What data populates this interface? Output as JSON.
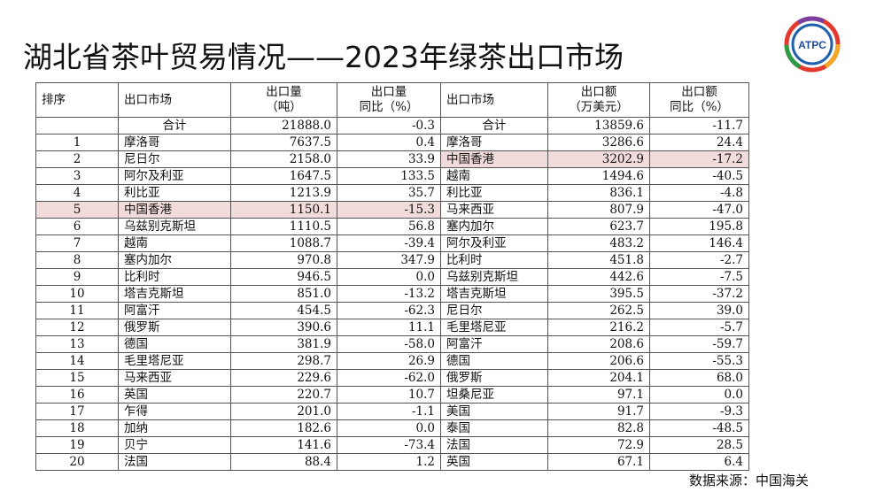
{
  "header": {
    "title": "湖北省茶叶贸易情况——2023年绿茶出口市场",
    "logo": "ATPC"
  },
  "table": {
    "columns": [
      [
        "排序"
      ],
      [
        "出口市场"
      ],
      [
        "出口量",
        "（吨）"
      ],
      [
        "出口量",
        "同比（%）"
      ],
      [
        "出口市场"
      ],
      [
        "出口额",
        "（万美元）"
      ],
      [
        "出口额",
        "同比（%）"
      ]
    ],
    "total": {
      "label": "合计",
      "volume": "21888.0",
      "volume_yoy": "-0.3",
      "label2": "合计",
      "amount": "13859.6",
      "amount_yoy": "-11.7"
    },
    "rows": [
      [
        "1",
        "摩洛哥",
        "7637.5",
        "0.4",
        "摩洛哥",
        "3286.6",
        "24.4"
      ],
      [
        "2",
        "尼日尔",
        "2158.0",
        "33.9",
        "中国香港",
        "3202.9",
        "-17.2"
      ],
      [
        "3",
        "阿尔及利亚",
        "1647.5",
        "133.5",
        "越南",
        "1494.6",
        "-40.5"
      ],
      [
        "4",
        "利比亚",
        "1213.9",
        "35.7",
        "利比亚",
        "836.1",
        "-4.8"
      ],
      [
        "5",
        "中国香港",
        "1150.1",
        "-15.3",
        "马来西亚",
        "807.9",
        "-47.0"
      ],
      [
        "6",
        "乌兹别克斯坦",
        "1110.5",
        "56.8",
        "塞内加尔",
        "623.7",
        "195.8"
      ],
      [
        "7",
        "越南",
        "1088.7",
        "-39.4",
        "阿尔及利亚",
        "483.2",
        "146.4"
      ],
      [
        "8",
        "塞内加尔",
        "970.8",
        "347.9",
        "比利时",
        "451.8",
        "-2.7"
      ],
      [
        "9",
        "比利时",
        "946.5",
        "0.0",
        "乌兹别克斯坦",
        "442.6",
        "-7.5"
      ],
      [
        "10",
        "塔吉克斯坦",
        "851.0",
        "-13.2",
        "塔吉克斯坦",
        "395.5",
        "-37.2"
      ],
      [
        "11",
        "阿富汗",
        "454.5",
        "-62.3",
        "尼日尔",
        "262.5",
        "39.0"
      ],
      [
        "12",
        "俄罗斯",
        "390.6",
        "11.1",
        "毛里塔尼亚",
        "216.2",
        "-5.7"
      ],
      [
        "13",
        "德国",
        "381.9",
        "-58.0",
        "阿富汗",
        "208.6",
        "-59.7"
      ],
      [
        "14",
        "毛里塔尼亚",
        "298.7",
        "26.9",
        "德国",
        "206.6",
        "-55.3"
      ],
      [
        "15",
        "马来西亚",
        "229.6",
        "-62.0",
        "俄罗斯",
        "204.1",
        "68.0"
      ],
      [
        "16",
        "英国",
        "220.7",
        "10.7",
        "坦桑尼亚",
        "97.1",
        "0.0"
      ],
      [
        "17",
        "乍得",
        "201.0",
        "-1.1",
        "美国",
        "91.7",
        "-9.3"
      ],
      [
        "18",
        "加纳",
        "182.6",
        "0.0",
        "泰国",
        "82.8",
        "-48.5"
      ],
      [
        "19",
        "贝宁",
        "141.6",
        "-73.4",
        "法国",
        "72.9",
        "28.5"
      ],
      [
        "20",
        "法国",
        "88.4",
        "1.2",
        "英国",
        "67.1",
        "6.4"
      ]
    ],
    "highlights": [
      {
        "row": 4,
        "columns": [
          0,
          1,
          2,
          3
        ],
        "color": "#f2dcdb"
      },
      {
        "row": 1,
        "columns": [
          4,
          5,
          6
        ],
        "color": "#f2dcdb"
      }
    ]
  },
  "footer": {
    "source": "数据来源：中国海关"
  }
}
